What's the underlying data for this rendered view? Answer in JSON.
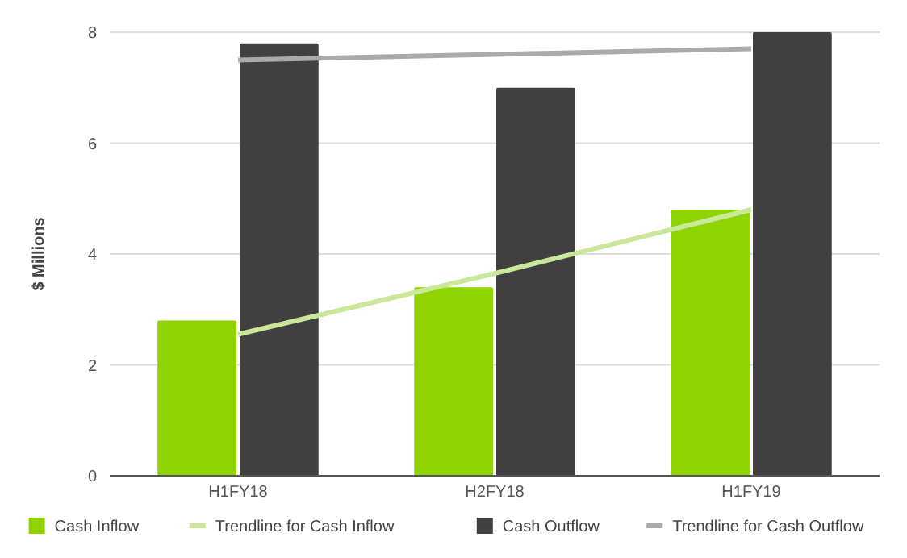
{
  "chart_data": {
    "type": "bar",
    "ylabel": "$ Millions",
    "categories": [
      "H1FY18",
      "H2FY18",
      "H1FY19"
    ],
    "series": [
      {
        "name": "Cash Inflow",
        "color": "#8fd400",
        "values": [
          2.8,
          3.4,
          4.8
        ]
      },
      {
        "name": "Trendline for Cash Inflow",
        "type": "line",
        "color": "#c9e89a",
        "values": [
          2.55,
          3.65,
          4.8
        ]
      },
      {
        "name": "Cash Outflow",
        "color": "#404040",
        "values": [
          7.8,
          7.0,
          8.0
        ]
      },
      {
        "name": "Trendline for Cash Outflow",
        "type": "line",
        "color": "#aaaaaa",
        "values": [
          7.5,
          7.6,
          7.7
        ]
      }
    ],
    "ylim": [
      0,
      8
    ],
    "yticks": [
      0,
      2,
      4,
      6,
      8
    ],
    "grid": "y",
    "legend": "bottom"
  }
}
